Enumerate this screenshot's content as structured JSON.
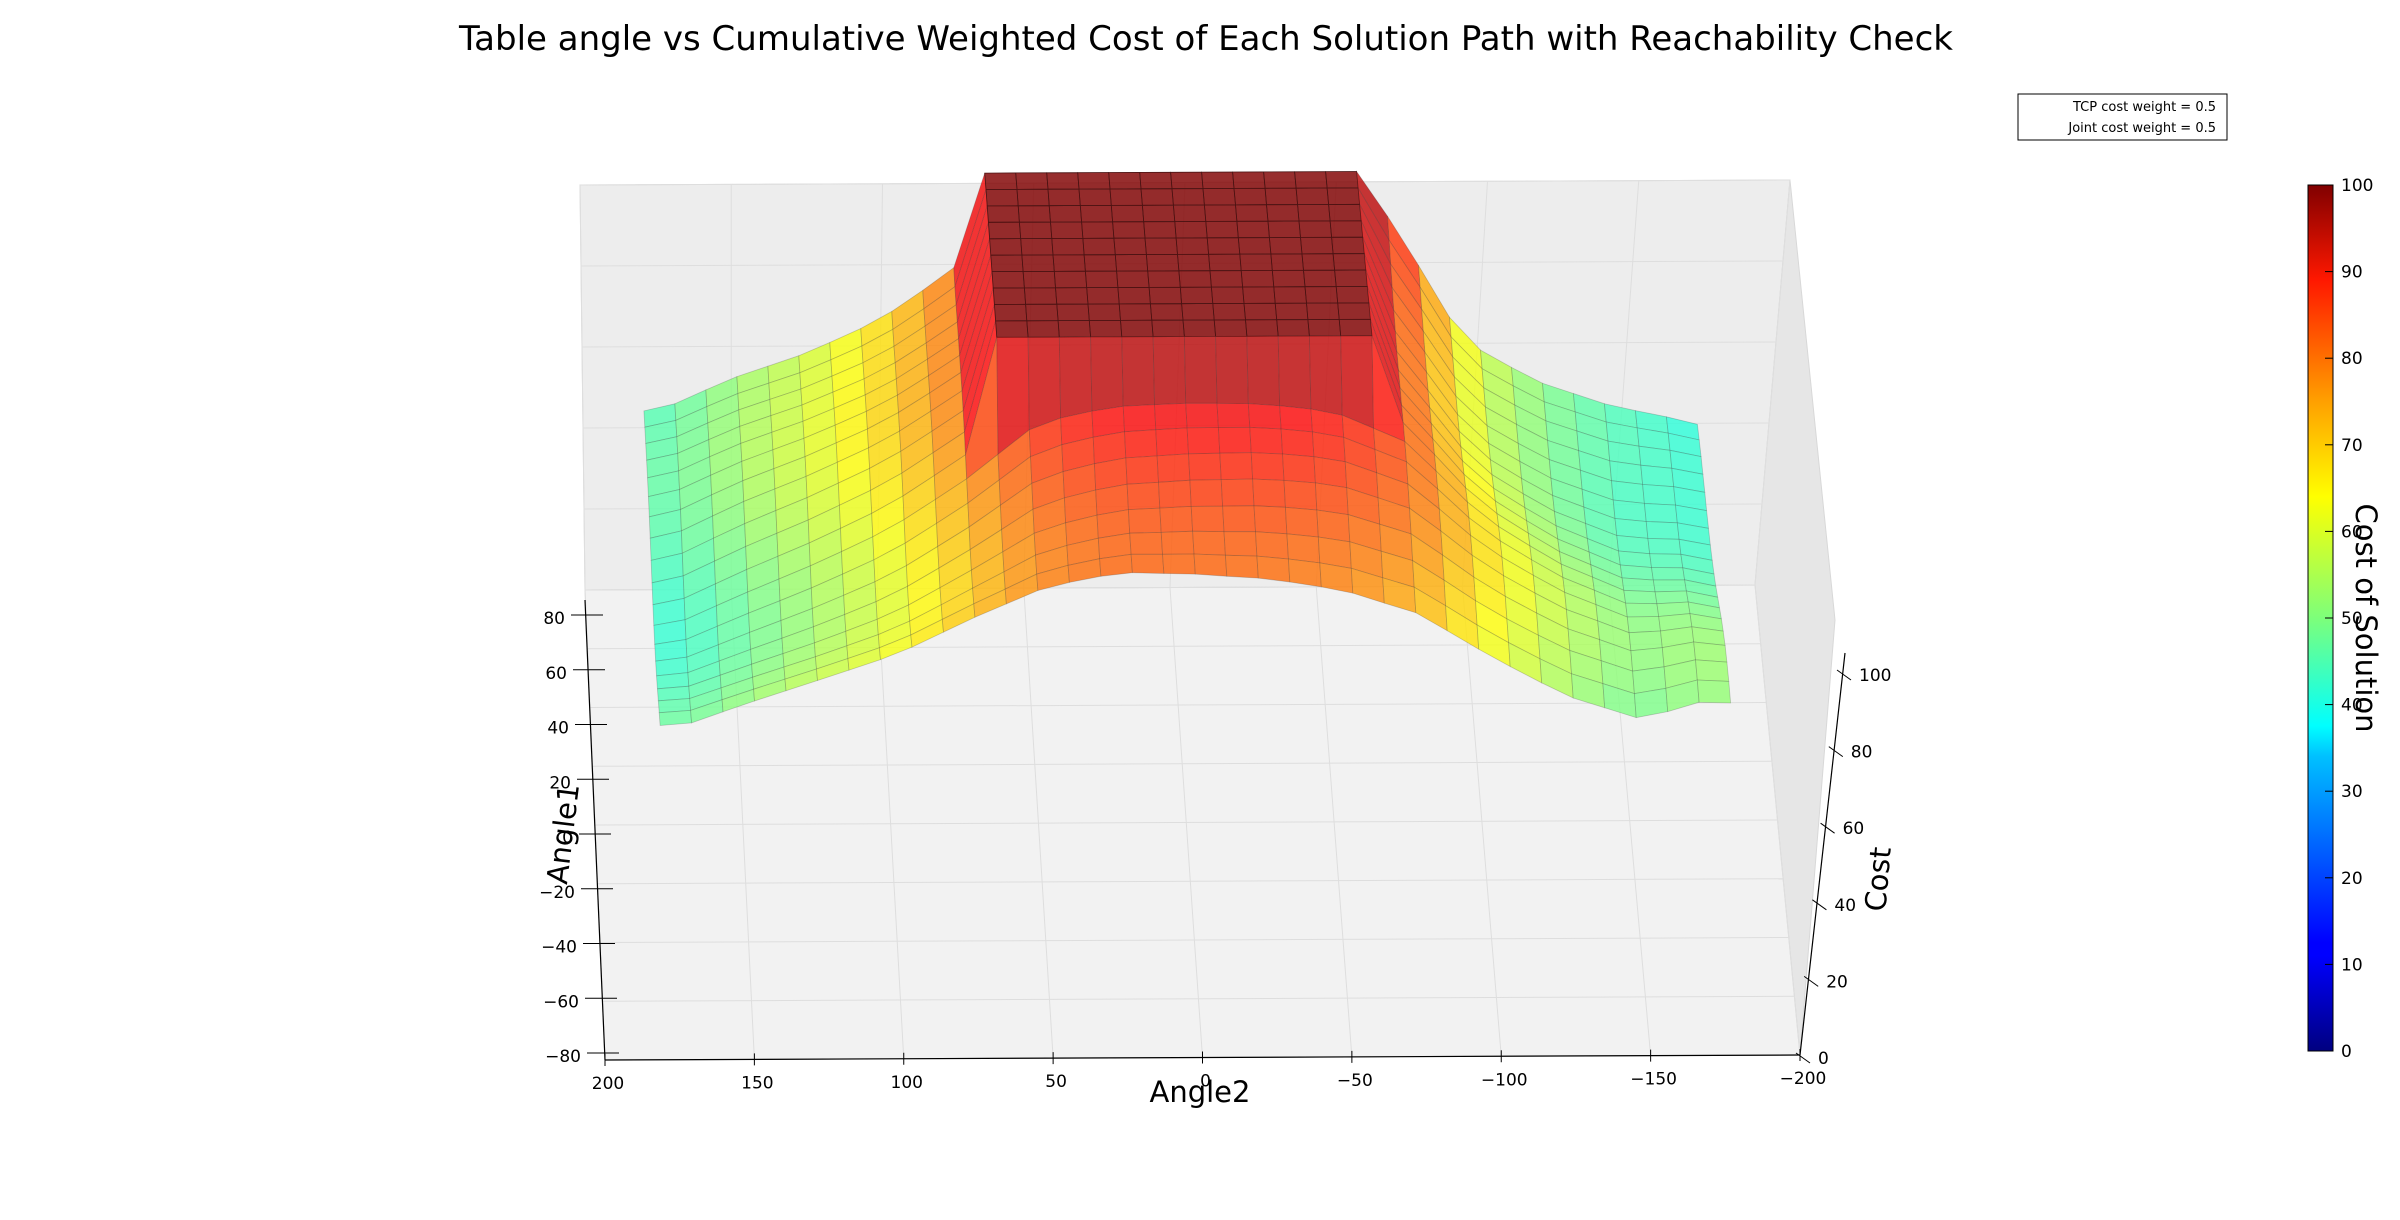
{
  "chart_data": {
    "type": "surface3d",
    "title": "Table angle vs Cumulative Weighted Cost of Each Solution Path with Reachability Check",
    "xlabel": "Angle2",
    "ylabel": "Angle1",
    "zlabel": "Cost",
    "x_ticks": [
      "200",
      "150",
      "100",
      "50",
      "0",
      "−50",
      "−100",
      "−150",
      "−200"
    ],
    "y_ticks": [
      "80",
      "60",
      "40",
      "20",
      "0",
      "−20",
      "−40",
      "−60",
      "−80"
    ],
    "z_ticks": [
      "0",
      "20",
      "40",
      "60",
      "80",
      "100"
    ],
    "xlim": [
      -200,
      200
    ],
    "ylim": [
      -80,
      80
    ],
    "zlim": [
      0,
      100
    ],
    "colorbar": {
      "label": "Cost of Solution",
      "ticks": [
        "0",
        "10",
        "20",
        "30",
        "40",
        "50",
        "60",
        "70",
        "80",
        "90",
        "100"
      ],
      "range": [
        0,
        100
      ],
      "colormap": "jet"
    },
    "legend": {
      "placement": "top-right",
      "entries": [
        "TCP cost weight = 0.5",
        "Joint cost weight = 0.5"
      ]
    },
    "grid": true,
    "surface_profile": {
      "angle2": [
        200,
        175,
        150,
        125,
        100,
        75,
        50,
        25,
        0,
        -25,
        -50,
        -75,
        -100,
        -125,
        -150,
        -175,
        -200
      ],
      "cost_at_low_angle1": [
        47,
        44,
        50,
        56,
        62,
        70,
        76,
        80,
        80,
        79,
        76,
        71,
        63,
        54,
        48,
        52,
        45
      ],
      "cost_at_high_angle1": [
        44,
        44,
        52,
        58,
        66,
        78,
        100,
        100,
        100,
        100,
        100,
        90,
        60,
        50,
        44,
        40,
        35
      ],
      "note_saturated": "plateau at cost 100 for angle2 between about 60 and -60 at high angle1"
    }
  }
}
